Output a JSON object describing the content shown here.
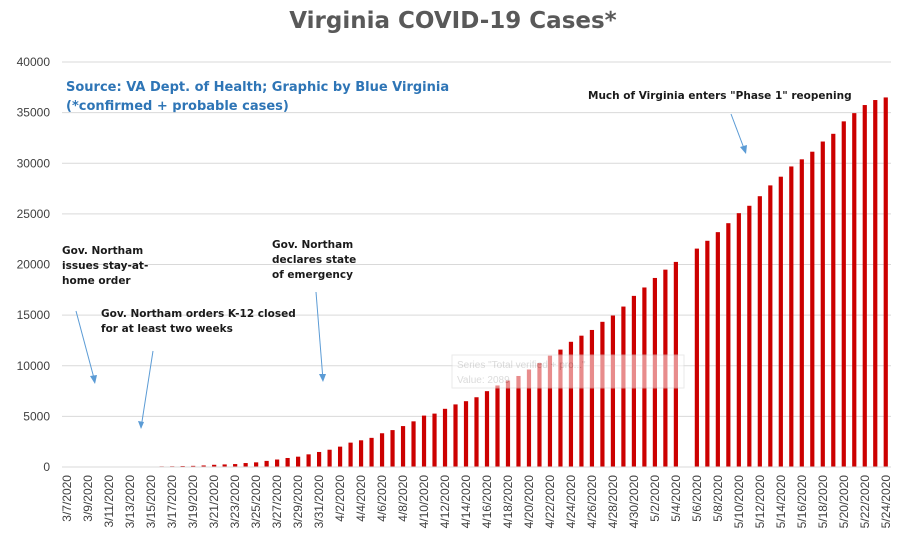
{
  "chart_data": {
    "type": "bar",
    "title": "Virginia COVID-19 Cases*",
    "source_lines": [
      "Source: VA Dept. of Health; Graphic by Blue Virginia",
      "(*confirmed + probable cases)"
    ],
    "ylim": [
      0,
      40000
    ],
    "yticks": [
      0,
      5000,
      10000,
      15000,
      20000,
      25000,
      30000,
      35000,
      40000
    ],
    "grid": true,
    "bar_color": "#cc0000",
    "categories": [
      "3/7/2020",
      "3/8/2020",
      "3/9/2020",
      "3/10/2020",
      "3/11/2020",
      "3/12/2020",
      "3/13/2020",
      "3/14/2020",
      "3/15/2020",
      "3/16/2020",
      "3/17/2020",
      "3/18/2020",
      "3/19/2020",
      "3/20/2020",
      "3/21/2020",
      "3/22/2020",
      "3/23/2020",
      "3/24/2020",
      "3/25/2020",
      "3/26/2020",
      "3/27/2020",
      "3/28/2020",
      "3/29/2020",
      "3/30/2020",
      "3/31/2020",
      "4/1/2020",
      "4/2/2020",
      "4/3/2020",
      "4/4/2020",
      "4/5/2020",
      "4/6/2020",
      "4/7/2020",
      "4/8/2020",
      "4/9/2020",
      "4/10/2020",
      "4/11/2020",
      "4/12/2020",
      "4/13/2020",
      "4/14/2020",
      "4/15/2020",
      "4/16/2020",
      "4/17/2020",
      "4/18/2020",
      "4/19/2020",
      "4/20/2020",
      "4/21/2020",
      "4/22/2020",
      "4/23/2020",
      "4/24/2020",
      "4/25/2020",
      "4/26/2020",
      "4/27/2020",
      "4/28/2020",
      "4/29/2020",
      "4/30/2020",
      "5/1/2020",
      "5/2/2020",
      "5/3/2020",
      "5/4/2020",
      "5/5/2020",
      "5/6/2020",
      "5/7/2020",
      "5/8/2020",
      "5/9/2020",
      "5/10/2020",
      "5/11/2020",
      "5/12/2020",
      "5/13/2020",
      "5/14/2020",
      "5/15/2020",
      "5/16/2020",
      "5/17/2020",
      "5/18/2020",
      "5/19/2020",
      "5/20/2020",
      "5/21/2020",
      "5/22/2020",
      "5/23/2020",
      "5/24/2020"
    ],
    "xtick_labels": [
      "3/7/2020",
      "3/9/2020",
      "3/11/2020",
      "3/13/2020",
      "3/15/2020",
      "3/17/2020",
      "3/19/2020",
      "3/21/2020",
      "3/23/2020",
      "3/25/2020",
      "3/27/2020",
      "3/29/2020",
      "3/31/2020",
      "4/2/2020",
      "4/4/2020",
      "4/6/2020",
      "4/8/2020",
      "4/10/2020",
      "4/12/2020",
      "4/14/2020",
      "4/16/2020",
      "4/18/2020",
      "4/20/2020",
      "4/22/2020",
      "4/24/2020",
      "4/26/2020",
      "4/28/2020",
      "4/30/2020",
      "5/2/2020",
      "5/4/2020",
      "5/6/2020",
      "5/8/2020",
      "5/10/2020",
      "5/12/2020",
      "5/14/2020",
      "5/16/2020",
      "5/18/2020",
      "5/20/2020",
      "5/22/2020",
      "5/24/2020"
    ],
    "values": [
      2,
      5,
      8,
      9,
      17,
      30,
      41,
      45,
      45,
      67,
      77,
      99,
      114,
      152,
      219,
      254,
      290,
      391,
      460,
      604,
      739,
      890,
      1020,
      1250,
      1484,
      1706,
      2012,
      2407,
      2637,
      2878,
      3333,
      3645,
      4042,
      4509,
      5077,
      5274,
      5747,
      6182,
      6500,
      6889,
      7491,
      8053,
      8537,
      8990,
      9630,
      10266,
      10998,
      11594,
      12366,
      12970,
      13535,
      14339,
      14961,
      15846,
      16901,
      17731,
      18671,
      19492,
      20256,
      null,
      21570,
      22342,
      23196,
      24081,
      25070,
      25800,
      26746,
      27813,
      28672,
      29683,
      30388,
      31140,
      32145,
      32908,
      34137,
      34950,
      35749,
      36244,
      36500
    ],
    "annotations": [
      {
        "lines": [
          "Gov. Northam orders K-12 closed",
          "for at least two weeks"
        ]
      },
      {
        "lines": [
          "Gov. Northam",
          "issues stay-at-",
          "home order"
        ]
      },
      {
        "lines": [
          "Gov. Northam",
          "declares state",
          "of emergency"
        ]
      },
      {
        "lines": [
          "Much of Virginia enters \"Phase 1\" reopening"
        ]
      }
    ],
    "tooltip": {
      "lines": [
        "Series \"Total verified + pro...\"",
        "Value: 2089"
      ]
    }
  }
}
